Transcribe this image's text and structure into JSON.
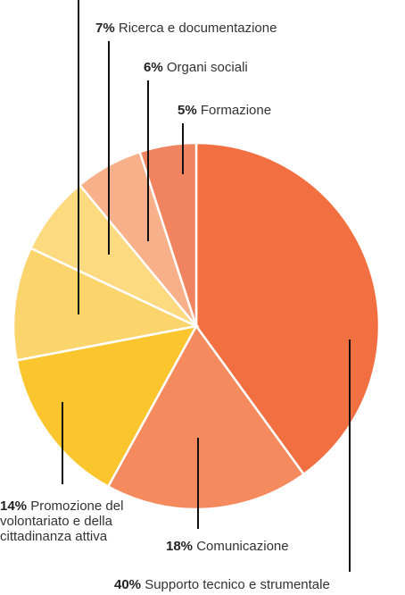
{
  "chart_data": {
    "type": "pie",
    "categories": [
      "Supporto tecnico e strumentale",
      "Comunicazione",
      "Promozione del volontariato e della cittadinanza attiva",
      null,
      "Ricerca e documentazione",
      "Organi sociali",
      "Formazione"
    ],
    "values": [
      40,
      18,
      14,
      10,
      7,
      6,
      5
    ],
    "value_labels": [
      "40%",
      "18%",
      "14%",
      null,
      "7%",
      "6%",
      "5%"
    ],
    "colors": [
      "#f26f42",
      "#f48a5e",
      "#fbc52d",
      "#fcd46c",
      "#fdd97f",
      "#f7b08a",
      "#f08460"
    ]
  }
}
